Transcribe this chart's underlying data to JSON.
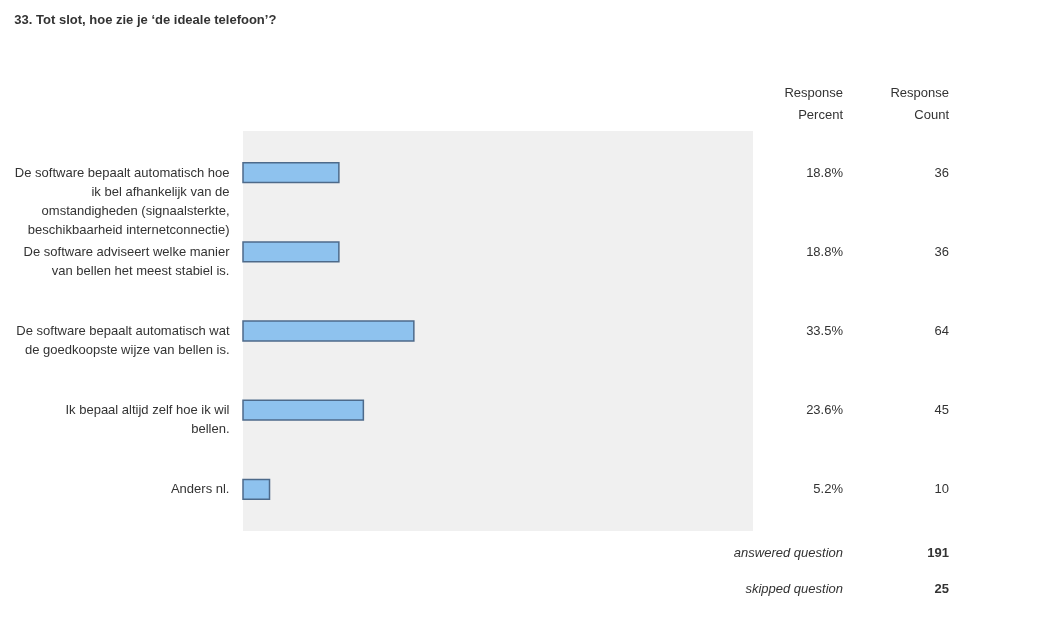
{
  "chart_data": {
    "type": "bar",
    "orientation": "horizontal",
    "title": "33. Tot slot, hoe zie je ‘de ideale telefoon’?",
    "categories": [
      "De software bepaalt automatisch hoe ik bel afhankelijk van de omstandigheden (signaalsterkte, beschikbaarheid internetconnectie)",
      "De software adviseert welke manier van bellen het meest stabiel is.",
      "De software bepaalt automatisch wat de goedkoopste wijze van bellen is.",
      "Ik bepaal altijd zelf hoe ik wil bellen.",
      "Anders nl."
    ],
    "values": [
      18.8,
      18.8,
      33.5,
      23.6,
      5.2
    ],
    "value_labels": [
      "18.8%",
      "18.8%",
      "33.5%",
      "23.6%",
      "5.2%"
    ],
    "color": "#8ec2ee",
    "xlim": [
      0,
      100
    ],
    "annotations": [
      "Response Percent",
      "Response Count",
      "answered question",
      "191",
      "skipped question",
      "25",
      "36",
      "36",
      "64",
      "45",
      "10"
    ]
  }
}
